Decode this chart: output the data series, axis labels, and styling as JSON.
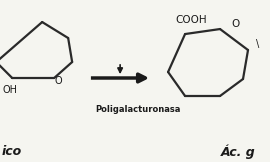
{
  "bg_color": "#f5f5f0",
  "line_color": "#2a2a2a",
  "arrow_color": "#1a1a1a",
  "text_color": "#1a1a1a",
  "enzyme_label": "Poligalacturonasa",
  "cooh_label": "COOH",
  "O_right_label": "O",
  "left_O_label": "O",
  "left_OH_label": "OH",
  "left_bottom_label": "ico",
  "right_bottom_label": "Ác. g",
  "lw": 1.6
}
